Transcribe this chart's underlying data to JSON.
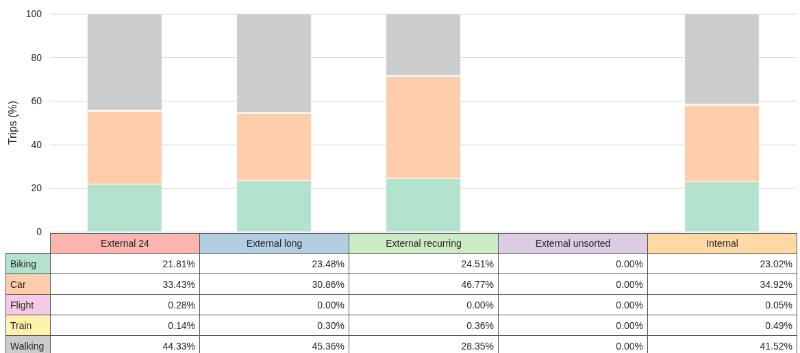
{
  "chart_data": {
    "type": "bar",
    "stacked": true,
    "ylabel": "Trips (%)",
    "categories": [
      "External 24",
      "External long",
      "External recurring",
      "External unsorted",
      "Internal"
    ],
    "series": [
      {
        "name": "Biking",
        "color": "#b3e2cd",
        "values": [
          21.81,
          23.48,
          24.51,
          0.0,
          23.02
        ],
        "value_labels": [
          "21.81%",
          "23.48%",
          "24.51%",
          "0.00%",
          "23.02%"
        ]
      },
      {
        "name": "Car",
        "color": "#fdcdac",
        "values": [
          33.43,
          30.86,
          46.77,
          0.0,
          34.92
        ],
        "value_labels": [
          "33.43%",
          "30.86%",
          "46.77%",
          "0.00%",
          "34.92%"
        ]
      },
      {
        "name": "Flight",
        "color": "#f4cae4",
        "values": [
          0.28,
          0.0,
          0.0,
          0.0,
          0.05
        ],
        "value_labels": [
          "0.28%",
          "0.00%",
          "0.00%",
          "0.00%",
          "0.05%"
        ]
      },
      {
        "name": "Train",
        "color": "#fff2ae",
        "values": [
          0.14,
          0.3,
          0.36,
          0.0,
          0.49
        ],
        "value_labels": [
          "0.14%",
          "0.30%",
          "0.36%",
          "0.00%",
          "0.49%"
        ]
      },
      {
        "name": "Walking",
        "color": "#cccccc",
        "values": [
          44.33,
          45.36,
          28.35,
          0.0,
          41.52
        ],
        "value_labels": [
          "44.33%",
          "45.36%",
          "28.35%",
          "0.00%",
          "41.52%"
        ]
      }
    ],
    "ylim": [
      0,
      100
    ],
    "yticks": [
      0,
      20,
      40,
      60,
      80,
      100
    ],
    "grid": "y",
    "tick_labels": "y"
  }
}
